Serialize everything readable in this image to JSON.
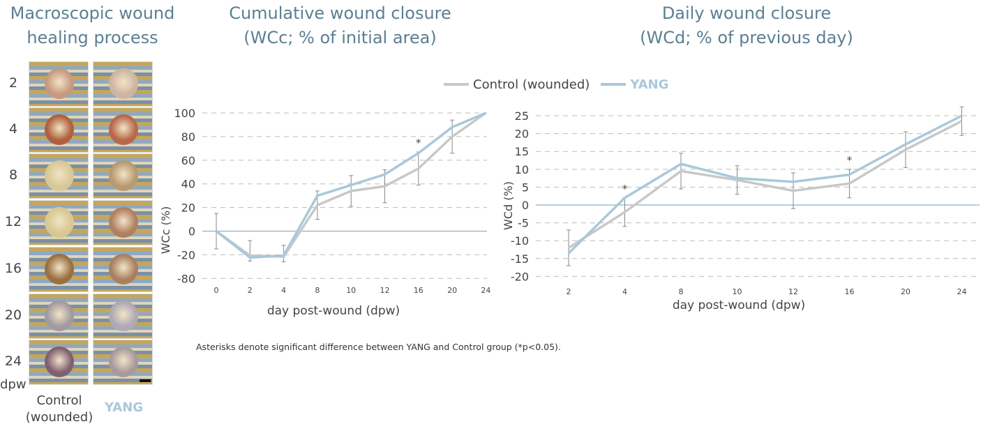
{
  "macro": {
    "title_line1": "Macroscopic wound",
    "title_line2": "healing process",
    "days": [
      "2",
      "4",
      "8",
      "12",
      "16",
      "20",
      "24"
    ],
    "unit": "dpw",
    "column_labels": {
      "control_line1": "Control",
      "control_line2": "(wounded)",
      "yang": "YANG"
    },
    "wound_colors": {
      "control": [
        "#c79a80",
        "#b0603c",
        "#d8c898",
        "#d8c890",
        "#9a7040",
        "#a39aa0",
        "#806070"
      ],
      "yang": [
        "#cfb5a0",
        "#b86848",
        "#b89a70",
        "#b08060",
        "#a88060",
        "#b0a8b4",
        "#a89a9a"
      ]
    }
  },
  "legend": {
    "control": "Control (wounded)",
    "yang": "YANG"
  },
  "colors": {
    "control": "#c8c8c8",
    "yang": "#a9c8da",
    "zero_line": "#8fb0c0",
    "grid": "#bbbbbb",
    "errorbar": "#888888"
  },
  "charts": {
    "wcc": {
      "title_line1": "Cumulative wound closure",
      "title_line2": "(WCc; % of initial area)"
    },
    "wcd": {
      "title_line1": "Daily wound closure",
      "title_line2": "(WCd; % of previous day)"
    }
  },
  "footnote": "Asterisks denote significant difference between YANG and Control group (*p<0.05).",
  "chart_data": [
    {
      "id": "wcc",
      "type": "line",
      "title": "Cumulative wound closure (WCc; % of initial area)",
      "xlabel": "day post-wound (dpw)",
      "ylabel": "WCc (%)",
      "categories": [
        "0",
        "2",
        "4",
        "8",
        "10",
        "12",
        "16",
        "20",
        "24"
      ],
      "yticks": [
        100,
        80,
        60,
        40,
        20,
        0,
        -20,
        -80
      ],
      "ylim": [
        -80,
        100
      ],
      "grid": true,
      "legend": "top-center",
      "significance": [
        {
          "category": "16",
          "label": "*"
        }
      ],
      "series": [
        {
          "name": "Control (wounded)",
          "values": [
            0,
            -22,
            -25,
            22,
            34,
            38,
            53,
            80,
            100
          ],
          "err": [
            15,
            14,
            13,
            12,
            13,
            14,
            14,
            14,
            0
          ]
        },
        {
          "name": "YANG",
          "values": [
            0,
            -27,
            -22,
            30,
            39,
            48,
            66,
            88,
            100
          ],
          "err": [
            0,
            0,
            0,
            0,
            0,
            0,
            0,
            0,
            0
          ]
        }
      ]
    },
    {
      "id": "wcd",
      "type": "line",
      "title": "Daily wound closure (WCd; % of previous day)",
      "xlabel": "day post-wound (dpw)",
      "ylabel": "WCd (%)",
      "categories": [
        "2",
        "4",
        "8",
        "10",
        "12",
        "16",
        "20",
        "24"
      ],
      "yticks": [
        25,
        20,
        15,
        10,
        5,
        0,
        -5,
        -10,
        -15,
        -20
      ],
      "ylim": [
        -20,
        25
      ],
      "grid": true,
      "legend": "top-center",
      "significance": [
        {
          "category": "4",
          "label": "*"
        },
        {
          "category": "16",
          "label": "*"
        }
      ],
      "series": [
        {
          "name": "Control (wounded)",
          "values": [
            -12,
            -2,
            9.5,
            7,
            4,
            6,
            15.5,
            23.5
          ],
          "err": [
            5,
            4,
            5,
            4,
            5,
            4,
            5,
            4
          ]
        },
        {
          "name": "YANG",
          "values": [
            -13.5,
            2,
            11.5,
            7.5,
            6.5,
            8.5,
            17,
            25
          ],
          "err": [
            0,
            0,
            0,
            0,
            0,
            0,
            0,
            0
          ]
        }
      ]
    }
  ]
}
